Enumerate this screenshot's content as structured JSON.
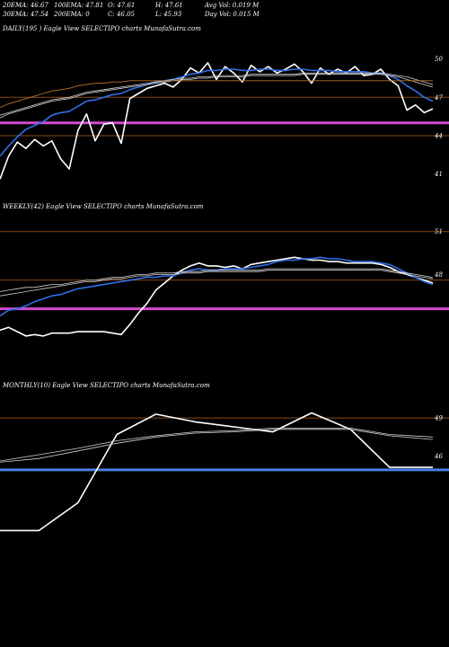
{
  "header": {
    "row1": [
      "20EMA: 46.67",
      "100EMA: 47.81",
      "O: 47.61",
      "H: 47.61",
      "Avg Vol: 0.019 M"
    ],
    "row2": [
      "30EMA: 47.54",
      "200EMA: 0",
      "C: 46.05",
      "L: 45.93",
      "Day Vol: 0.015 M"
    ]
  },
  "colors": {
    "background": "#000000",
    "price": "#ffffff",
    "ema_blue": "#2f6ee8",
    "ema_white": "#cfcfcf",
    "grid": "#8a4a14",
    "magenta": "#d24bd2",
    "blue_band": "#4d7fe0"
  },
  "chart_data": [
    {
      "type": "line",
      "title": "DAILY(195 ) Eagle  View  SELECTIPO charts MunafaSutra.com",
      "ylim": [
        39.5,
        51.8
      ],
      "yticks": [
        50,
        47,
        44,
        41
      ],
      "hlines": [
        {
          "value": 47.0,
          "color": "#8a4a14"
        },
        {
          "value": 45.0,
          "color": "#d24bd2"
        },
        {
          "value": 44.0,
          "color": "#8a4a14"
        }
      ],
      "x": [
        0,
        2,
        4,
        6,
        8,
        10,
        12,
        14,
        16,
        18,
        20,
        22,
        24,
        26,
        28,
        30,
        32,
        34,
        36,
        38,
        40,
        42,
        44,
        46,
        48,
        50,
        52,
        54,
        56,
        58,
        60,
        62,
        64,
        66,
        68,
        70,
        72,
        74,
        76,
        78,
        80,
        82,
        84,
        86,
        88,
        90,
        92,
        94,
        96,
        98,
        100
      ],
      "series": [
        {
          "role": "price",
          "values": [
            40.6,
            42.4,
            43.5,
            43.0,
            43.7,
            43.2,
            43.6,
            42.2,
            41.4,
            44.4,
            45.7,
            43.6,
            44.9,
            45.0,
            43.4,
            46.9,
            47.3,
            47.7,
            47.9,
            48.1,
            47.8,
            48.4,
            49.3,
            48.9,
            49.7,
            48.4,
            49.4,
            48.9,
            48.2,
            49.5,
            49.0,
            49.4,
            48.9,
            49.2,
            49.6,
            49.0,
            48.1,
            49.3,
            48.8,
            49.2,
            48.9,
            49.4,
            48.7,
            48.8,
            49.2,
            48.4,
            47.9,
            46.0,
            46.4,
            45.8,
            46.1
          ]
        },
        {
          "role": "ema_blue",
          "values": [
            42.4,
            43.2,
            43.9,
            44.5,
            44.8,
            45.1,
            45.6,
            45.8,
            45.9,
            46.3,
            46.7,
            46.8,
            47.0,
            47.2,
            47.3,
            47.6,
            47.8,
            48.0,
            48.2,
            48.3,
            48.4,
            48.6,
            48.8,
            48.9,
            49.1,
            49.1,
            49.2,
            49.2,
            49.1,
            49.1,
            49.2,
            49.2,
            49.1,
            49.1,
            49.2,
            49.2,
            49.1,
            49.1,
            49.1,
            49.0,
            49.0,
            49.0,
            49.0,
            48.9,
            48.9,
            48.7,
            48.4,
            47.9,
            47.5,
            47.0,
            46.7
          ]
        },
        {
          "role": "ema_white_1",
          "values": [
            45.4,
            45.7,
            45.9,
            46.1,
            46.3,
            46.5,
            46.7,
            46.8,
            46.9,
            47.1,
            47.3,
            47.4,
            47.5,
            47.6,
            47.7,
            47.8,
            47.9,
            48.0,
            48.1,
            48.2,
            48.3,
            48.4,
            48.4,
            48.5,
            48.5,
            48.6,
            48.6,
            48.6,
            48.6,
            48.7,
            48.7,
            48.7,
            48.7,
            48.7,
            48.7,
            48.8,
            48.8,
            48.8,
            48.8,
            48.8,
            48.8,
            48.8,
            48.8,
            48.8,
            48.8,
            48.7,
            48.6,
            48.4,
            48.2,
            48.0,
            47.8
          ]
        },
        {
          "role": "ema_white_2",
          "values": [
            45.6,
            45.8,
            46.0,
            46.2,
            46.4,
            46.6,
            46.8,
            46.9,
            47.0,
            47.2,
            47.4,
            47.5,
            47.6,
            47.7,
            47.8,
            47.9,
            48.0,
            48.1,
            48.2,
            48.3,
            48.4,
            48.5,
            48.5,
            48.6,
            48.6,
            48.7,
            48.7,
            48.7,
            48.7,
            48.8,
            48.8,
            48.8,
            48.8,
            48.8,
            48.8,
            48.9,
            48.9,
            48.9,
            48.9,
            48.9,
            48.9,
            48.9,
            48.9,
            48.9,
            48.9,
            48.8,
            48.7,
            48.6,
            48.4,
            48.2,
            48.0
          ]
        },
        {
          "role": "ema_orange",
          "values": [
            46.2,
            46.5,
            46.7,
            46.9,
            47.1,
            47.3,
            47.5,
            47.6,
            47.7,
            47.9,
            48.0,
            48.1,
            48.1,
            48.2,
            48.2,
            48.3,
            48.3,
            48.3,
            48.3,
            48.3,
            48.3,
            48.3,
            48.3,
            48.3,
            48.3,
            48.3,
            48.3,
            48.3,
            48.3,
            48.3,
            48.3,
            48.3,
            48.3,
            48.3,
            48.3,
            48.3,
            48.3,
            48.3,
            48.3,
            48.3,
            48.3,
            48.3,
            48.3,
            48.3,
            48.3,
            48.3,
            48.3,
            48.3,
            48.3,
            48.3,
            48.3
          ]
        }
      ]
    },
    {
      "type": "line",
      "title": "WEEKLY(42) Eagle  View  SELECTIPO charts MunafaSutra.com",
      "ylim": [
        43.0,
        52.3
      ],
      "yticks": [
        51,
        48
      ],
      "hlines": [
        {
          "value": 51.0,
          "color": "#8a4a14"
        },
        {
          "value": 47.6,
          "color": "#8a4a14"
        },
        {
          "value": 45.6,
          "color": "#d24bd2"
        }
      ],
      "x": [
        0,
        2,
        4,
        6,
        8,
        10,
        12,
        14,
        16,
        18,
        20,
        22,
        24,
        26,
        28,
        30,
        32,
        34,
        36,
        38,
        40,
        42,
        44,
        46,
        48,
        50,
        52,
        54,
        56,
        58,
        60,
        62,
        64,
        66,
        68,
        70,
        72,
        74,
        76,
        78,
        80,
        82,
        84,
        86,
        88,
        90,
        92,
        94,
        96,
        98,
        100
      ],
      "series": [
        {
          "role": "price",
          "values": [
            44.1,
            44.3,
            44.0,
            43.7,
            43.8,
            43.7,
            43.9,
            43.9,
            43.9,
            44.0,
            44.0,
            44.0,
            44.0,
            43.9,
            43.8,
            44.5,
            45.3,
            46.0,
            46.9,
            47.4,
            47.9,
            48.3,
            48.6,
            48.8,
            48.6,
            48.6,
            48.5,
            48.6,
            48.4,
            48.7,
            48.8,
            48.9,
            49.0,
            49.1,
            49.2,
            49.1,
            49.0,
            49.0,
            48.9,
            48.9,
            48.8,
            48.8,
            48.8,
            48.8,
            48.7,
            48.5,
            48.2,
            48.0,
            47.8,
            47.6,
            47.4
          ]
        },
        {
          "role": "ema_blue",
          "values": [
            45.1,
            45.5,
            45.6,
            45.8,
            46.1,
            46.3,
            46.5,
            46.6,
            46.8,
            47.0,
            47.1,
            47.2,
            47.3,
            47.4,
            47.5,
            47.6,
            47.7,
            47.8,
            47.8,
            47.9,
            47.9,
            48.1,
            48.3,
            48.4,
            48.3,
            48.3,
            48.4,
            48.4,
            48.4,
            48.5,
            48.6,
            48.7,
            48.9,
            49.0,
            49.0,
            49.1,
            49.1,
            49.2,
            49.1,
            49.1,
            49.0,
            48.9,
            48.9,
            48.9,
            48.8,
            48.7,
            48.4,
            48.1,
            47.8,
            47.5,
            47.3
          ]
        },
        {
          "role": "ema_white_1",
          "values": [
            46.8,
            46.9,
            47.0,
            47.1,
            47.1,
            47.2,
            47.3,
            47.3,
            47.4,
            47.5,
            47.6,
            47.6,
            47.7,
            47.8,
            47.8,
            47.9,
            48.0,
            48.0,
            48.1,
            48.1,
            48.1,
            48.2,
            48.2,
            48.2,
            48.3,
            48.3,
            48.3,
            48.3,
            48.3,
            48.3,
            48.3,
            48.4,
            48.4,
            48.4,
            48.4,
            48.4,
            48.4,
            48.4,
            48.4,
            48.4,
            48.4,
            48.4,
            48.4,
            48.4,
            48.4,
            48.3,
            48.2,
            48.1,
            48.0,
            47.9,
            47.8
          ]
        },
        {
          "role": "ema_white_2",
          "values": [
            46.5,
            46.6,
            46.7,
            46.8,
            46.9,
            47.0,
            47.1,
            47.2,
            47.3,
            47.4,
            47.5,
            47.5,
            47.6,
            47.7,
            47.7,
            47.8,
            47.9,
            47.9,
            48.0,
            48.0,
            48.0,
            48.1,
            48.1,
            48.1,
            48.2,
            48.2,
            48.2,
            48.2,
            48.2,
            48.2,
            48.2,
            48.3,
            48.3,
            48.3,
            48.3,
            48.3,
            48.3,
            48.3,
            48.3,
            48.3,
            48.3,
            48.3,
            48.3,
            48.3,
            48.3,
            48.2,
            48.1,
            48.0,
            47.9,
            47.8,
            47.7
          ]
        }
      ]
    },
    {
      "type": "line",
      "title": "MONTHLY(10) Eagle  View  SELECTIPO charts MunafaSutra.com",
      "ylim": [
        38.0,
        51.0
      ],
      "yticks": [
        49,
        46
      ],
      "hlines": [
        {
          "value": 49.0,
          "color": "#8a4a14"
        },
        {
          "value": 44.9,
          "color": "#4d7fe0"
        }
      ],
      "x": [
        0,
        9,
        18,
        27,
        36,
        45,
        54,
        63,
        72,
        81,
        90,
        100
      ],
      "series": [
        {
          "role": "price",
          "values": [
            40.1,
            40.1,
            42.3,
            47.7,
            49.3,
            48.7,
            48.3,
            47.9,
            49.4,
            48.1,
            45.1,
            45.1
          ]
        },
        {
          "role": "ema_white_1",
          "values": [
            45.6,
            46.1,
            46.6,
            47.2,
            47.6,
            47.9,
            48.0,
            48.2,
            48.2,
            48.2,
            47.7,
            47.5
          ]
        },
        {
          "role": "ema_white_2",
          "values": [
            45.5,
            45.8,
            46.4,
            47.0,
            47.5,
            47.8,
            47.9,
            48.1,
            48.1,
            48.1,
            47.6,
            47.3
          ]
        }
      ]
    }
  ]
}
